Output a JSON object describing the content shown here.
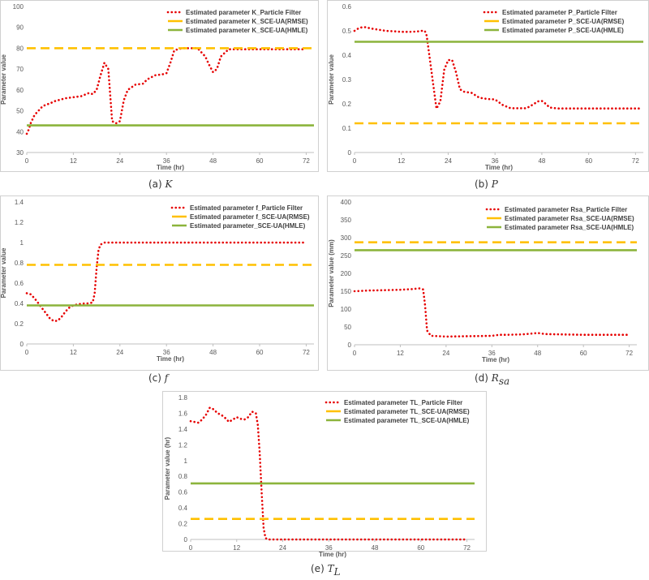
{
  "figure": {
    "colors": {
      "particle_filter": "#e60000",
      "sce_ua_rmse": "#ffc000",
      "sce_ua_hmle": "#8cb43c",
      "axis": "#bfbfbf",
      "text": "#595959"
    }
  },
  "chart_data": [
    {
      "id": "K",
      "type": "line",
      "caption_prefix": "(a)",
      "caption_symbol": "K",
      "caption_subscript": "",
      "xlabel": "Time (hr)",
      "ylabel": "Parameter value",
      "xlim": [
        0,
        74
      ],
      "ylim": [
        30,
        100
      ],
      "xticks": [
        0,
        12,
        24,
        36,
        48,
        60,
        72
      ],
      "yticks": [
        30,
        40,
        50,
        60,
        70,
        80,
        90,
        100
      ],
      "ytick_labels": [
        "30",
        "40",
        "50",
        "60",
        "70",
        "80",
        "90",
        "100"
      ],
      "series": [
        {
          "name": "Estimated parameter K_Particle Filter",
          "style": "dotted",
          "x": [
            0,
            0.5,
            1,
            2,
            3,
            4,
            5,
            6,
            7,
            8,
            10,
            12,
            14,
            16,
            17,
            18,
            19,
            20,
            21,
            22,
            23,
            24,
            25,
            26,
            28,
            30,
            31,
            33,
            35,
            36,
            37,
            38,
            40,
            42,
            44,
            46,
            47,
            48,
            49,
            50,
            52,
            56,
            60,
            66,
            72
          ],
          "y": [
            39,
            41,
            44,
            48,
            50,
            52,
            53,
            53.5,
            54.5,
            55,
            56,
            56.5,
            57,
            58.5,
            58,
            60,
            67,
            73,
            70,
            45,
            44,
            45,
            55,
            60,
            62.5,
            63,
            65,
            67,
            67.5,
            68,
            73,
            79,
            80,
            80,
            80,
            76,
            72,
            68.5,
            70,
            76,
            79.5,
            79.5,
            79.5,
            79.5,
            79.5
          ]
        },
        {
          "name": "Estimated parameter K_SCE-UA(RMSE)",
          "style": "dashed",
          "constant": 80
        },
        {
          "name": "Estimated parameter K_SCE-UA(HMLE)",
          "style": "solid",
          "constant": 43
        }
      ]
    },
    {
      "id": "P",
      "type": "line",
      "caption_prefix": "(b)",
      "caption_symbol": "P",
      "caption_subscript": "",
      "xlabel": "Time (hr)",
      "ylabel": "Parameter value",
      "xlim": [
        0,
        74
      ],
      "ylim": [
        0,
        0.6
      ],
      "xticks": [
        0,
        12,
        24,
        36,
        48,
        60,
        72
      ],
      "yticks": [
        0,
        0.1,
        0.2,
        0.3,
        0.4,
        0.5,
        0.6
      ],
      "ytick_labels": [
        "0",
        "0.1",
        "0.2",
        "0.3",
        "0.4",
        "0.5",
        "0.6"
      ],
      "series": [
        {
          "name": "Estimated parameter P_Particle Filter",
          "style": "dotted",
          "x": [
            0,
            1,
            2,
            3,
            4,
            6,
            8,
            10,
            12,
            14,
            16,
            17,
            18,
            18.5,
            19,
            20,
            21,
            22,
            23,
            24,
            25,
            26,
            27,
            28,
            30,
            32,
            34,
            36,
            38,
            40,
            42,
            44,
            45,
            46,
            47,
            48,
            49,
            50,
            52,
            56,
            60,
            66,
            72,
            73
          ],
          "y": [
            0.5,
            0.51,
            0.515,
            0.515,
            0.51,
            0.505,
            0.5,
            0.498,
            0.496,
            0.496,
            0.497,
            0.5,
            0.5,
            0.48,
            0.42,
            0.3,
            0.18,
            0.21,
            0.34,
            0.38,
            0.38,
            0.33,
            0.26,
            0.25,
            0.245,
            0.225,
            0.22,
            0.218,
            0.195,
            0.182,
            0.182,
            0.182,
            0.19,
            0.2,
            0.21,
            0.212,
            0.2,
            0.185,
            0.181,
            0.181,
            0.181,
            0.181,
            0.181,
            0.181
          ]
        },
        {
          "name": "Estimated parameter P_SCE-UA(RMSE)",
          "style": "dashed",
          "constant": 0.12
        },
        {
          "name": "Estimated parameter P_SCE-UA(HMLE)",
          "style": "solid",
          "constant": 0.455
        }
      ]
    },
    {
      "id": "f",
      "type": "line",
      "caption_prefix": "(c)",
      "caption_symbol": "f",
      "caption_subscript": "",
      "xlabel": "Time (hr)",
      "ylabel": "Parameter value",
      "xlim": [
        0,
        74
      ],
      "ylim": [
        0,
        1.4
      ],
      "xticks": [
        0,
        12,
        24,
        36,
        48,
        60,
        72
      ],
      "yticks": [
        0,
        0.2,
        0.4,
        0.6,
        0.8,
        1,
        1.2,
        1.4
      ],
      "ytick_labels": [
        "0",
        "0.2",
        "0.4",
        "0.6",
        "0.8",
        "1",
        "1.2",
        "1.4"
      ],
      "series": [
        {
          "name": "Estimated parameter f_Particle Filter",
          "style": "dotted",
          "x": [
            0,
            1,
            2,
            3,
            4,
            5,
            6,
            7,
            8,
            9,
            10,
            11,
            12,
            13,
            14,
            15,
            16,
            17,
            17.5,
            18,
            18.5,
            19,
            20,
            24,
            36,
            48,
            60,
            72
          ],
          "y": [
            0.5,
            0.49,
            0.45,
            0.4,
            0.35,
            0.3,
            0.25,
            0.225,
            0.23,
            0.27,
            0.32,
            0.36,
            0.38,
            0.39,
            0.395,
            0.4,
            0.4,
            0.41,
            0.5,
            0.75,
            0.93,
            0.98,
            1,
            1,
            1,
            1,
            1,
            1
          ]
        },
        {
          "name": "Estimated parameter f_SCE-UA(RMSE)",
          "style": "dashed",
          "constant": 0.78
        },
        {
          "name": "Estimated parameter_SCE-UA(HMLE)",
          "style": "solid",
          "constant": 0.38
        }
      ]
    },
    {
      "id": "Rsa",
      "type": "line",
      "caption_prefix": "(d)",
      "caption_symbol": "R",
      "caption_subscript": "sa",
      "xlabel": "Time (hr)",
      "ylabel": "Parameter value (mm)",
      "xlim": [
        0,
        74
      ],
      "ylim": [
        0,
        400
      ],
      "xticks": [
        0,
        12,
        24,
        36,
        48,
        60,
        72
      ],
      "yticks": [
        0,
        50,
        100,
        150,
        200,
        250,
        300,
        350,
        400
      ],
      "ytick_labels": [
        "0",
        "50",
        "100",
        "150",
        "200",
        "250",
        "300",
        "350",
        "400"
      ],
      "series": [
        {
          "name": "Estimated parameter Rsa_Particle Filter",
          "style": "dotted",
          "x": [
            0,
            4,
            8,
            12,
            15,
            17,
            18,
            18.5,
            19,
            20,
            24,
            30,
            36,
            38,
            40,
            44,
            46,
            48,
            50,
            54,
            60,
            66,
            72
          ],
          "y": [
            150,
            152,
            153,
            154,
            156,
            158,
            155,
            110,
            40,
            25,
            23,
            24,
            25,
            28,
            28,
            29,
            31,
            33,
            30,
            29,
            28,
            28,
            28
          ]
        },
        {
          "name": "Estimated parameter Rsa_SCE-UA(RMSE)",
          "style": "dashed",
          "constant": 287
        },
        {
          "name": "Estimated parameter Rsa_SCE-UA(HMLE)",
          "style": "solid",
          "constant": 265
        }
      ]
    },
    {
      "id": "TL",
      "type": "line",
      "caption_prefix": "(e)",
      "caption_symbol": "T",
      "caption_subscript": "L",
      "xlabel": "Time (hr)",
      "ylabel": "Parameter value (hr)",
      "xlim": [
        0,
        74
      ],
      "ylim": [
        0,
        1.8
      ],
      "xticks": [
        0,
        12,
        24,
        36,
        48,
        60,
        72
      ],
      "yticks": [
        0,
        0.2,
        0.4,
        0.6,
        0.8,
        1,
        1.2,
        1.4,
        1.6,
        1.8
      ],
      "ytick_labels": [
        "0",
        "0.2",
        "0.4",
        "0.6",
        "0.8",
        "1",
        "1.2",
        "1.4",
        "1.6",
        "1.8"
      ],
      "series": [
        {
          "name": "Estimated parameter TL_Particle Filter",
          "style": "dotted",
          "x": [
            0,
            2,
            3,
            4,
            5,
            6,
            7,
            8,
            9,
            10,
            11,
            12,
            13,
            14,
            15,
            16,
            17,
            17.5,
            18,
            18.5,
            19,
            19.5,
            20,
            24,
            36,
            48,
            60,
            72
          ],
          "y": [
            1.5,
            1.48,
            1.52,
            1.58,
            1.67,
            1.65,
            1.6,
            1.58,
            1.54,
            1.49,
            1.52,
            1.55,
            1.53,
            1.52,
            1.55,
            1.62,
            1.6,
            1.45,
            1.1,
            0.6,
            0.15,
            0.02,
            0,
            0,
            0,
            0,
            0,
            0
          ]
        },
        {
          "name": "Estimated parameter TL_SCE-UA(RMSE)",
          "style": "dashed",
          "constant": 0.26
        },
        {
          "name": "Estimated parameter TL_SCE-UA(HMLE)",
          "style": "solid",
          "constant": 0.71
        }
      ]
    }
  ]
}
